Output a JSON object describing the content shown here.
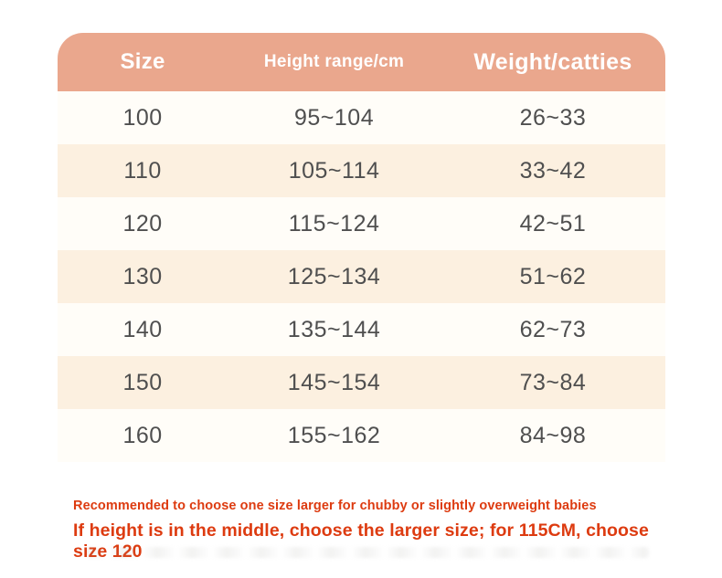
{
  "table": {
    "headers": [
      "Size",
      "Height range/cm",
      "Weight/catties"
    ],
    "rows": [
      [
        "100",
        "95~104",
        "26~33"
      ],
      [
        "110",
        "105~114",
        "33~42"
      ],
      [
        "120",
        "115~124",
        "42~51"
      ],
      [
        "130",
        "125~134",
        "51~62"
      ],
      [
        "140",
        "135~144",
        "62~73"
      ],
      [
        "150",
        "145~154",
        "73~84"
      ],
      [
        "160",
        "155~162",
        "84~98"
      ]
    ]
  },
  "notes": {
    "line1": "Recommended to choose one size larger for chubby or slightly overweight babies",
    "line2": "If height is in the middle, choose the larger size; for 115CM, choose size 120"
  },
  "colors": {
    "header_bg": "#eaa78d",
    "row_white": "#fffdf8",
    "row_cream": "#fcf0e0",
    "cell_text": "#4f4f4f",
    "note_text": "#dd3b10"
  }
}
